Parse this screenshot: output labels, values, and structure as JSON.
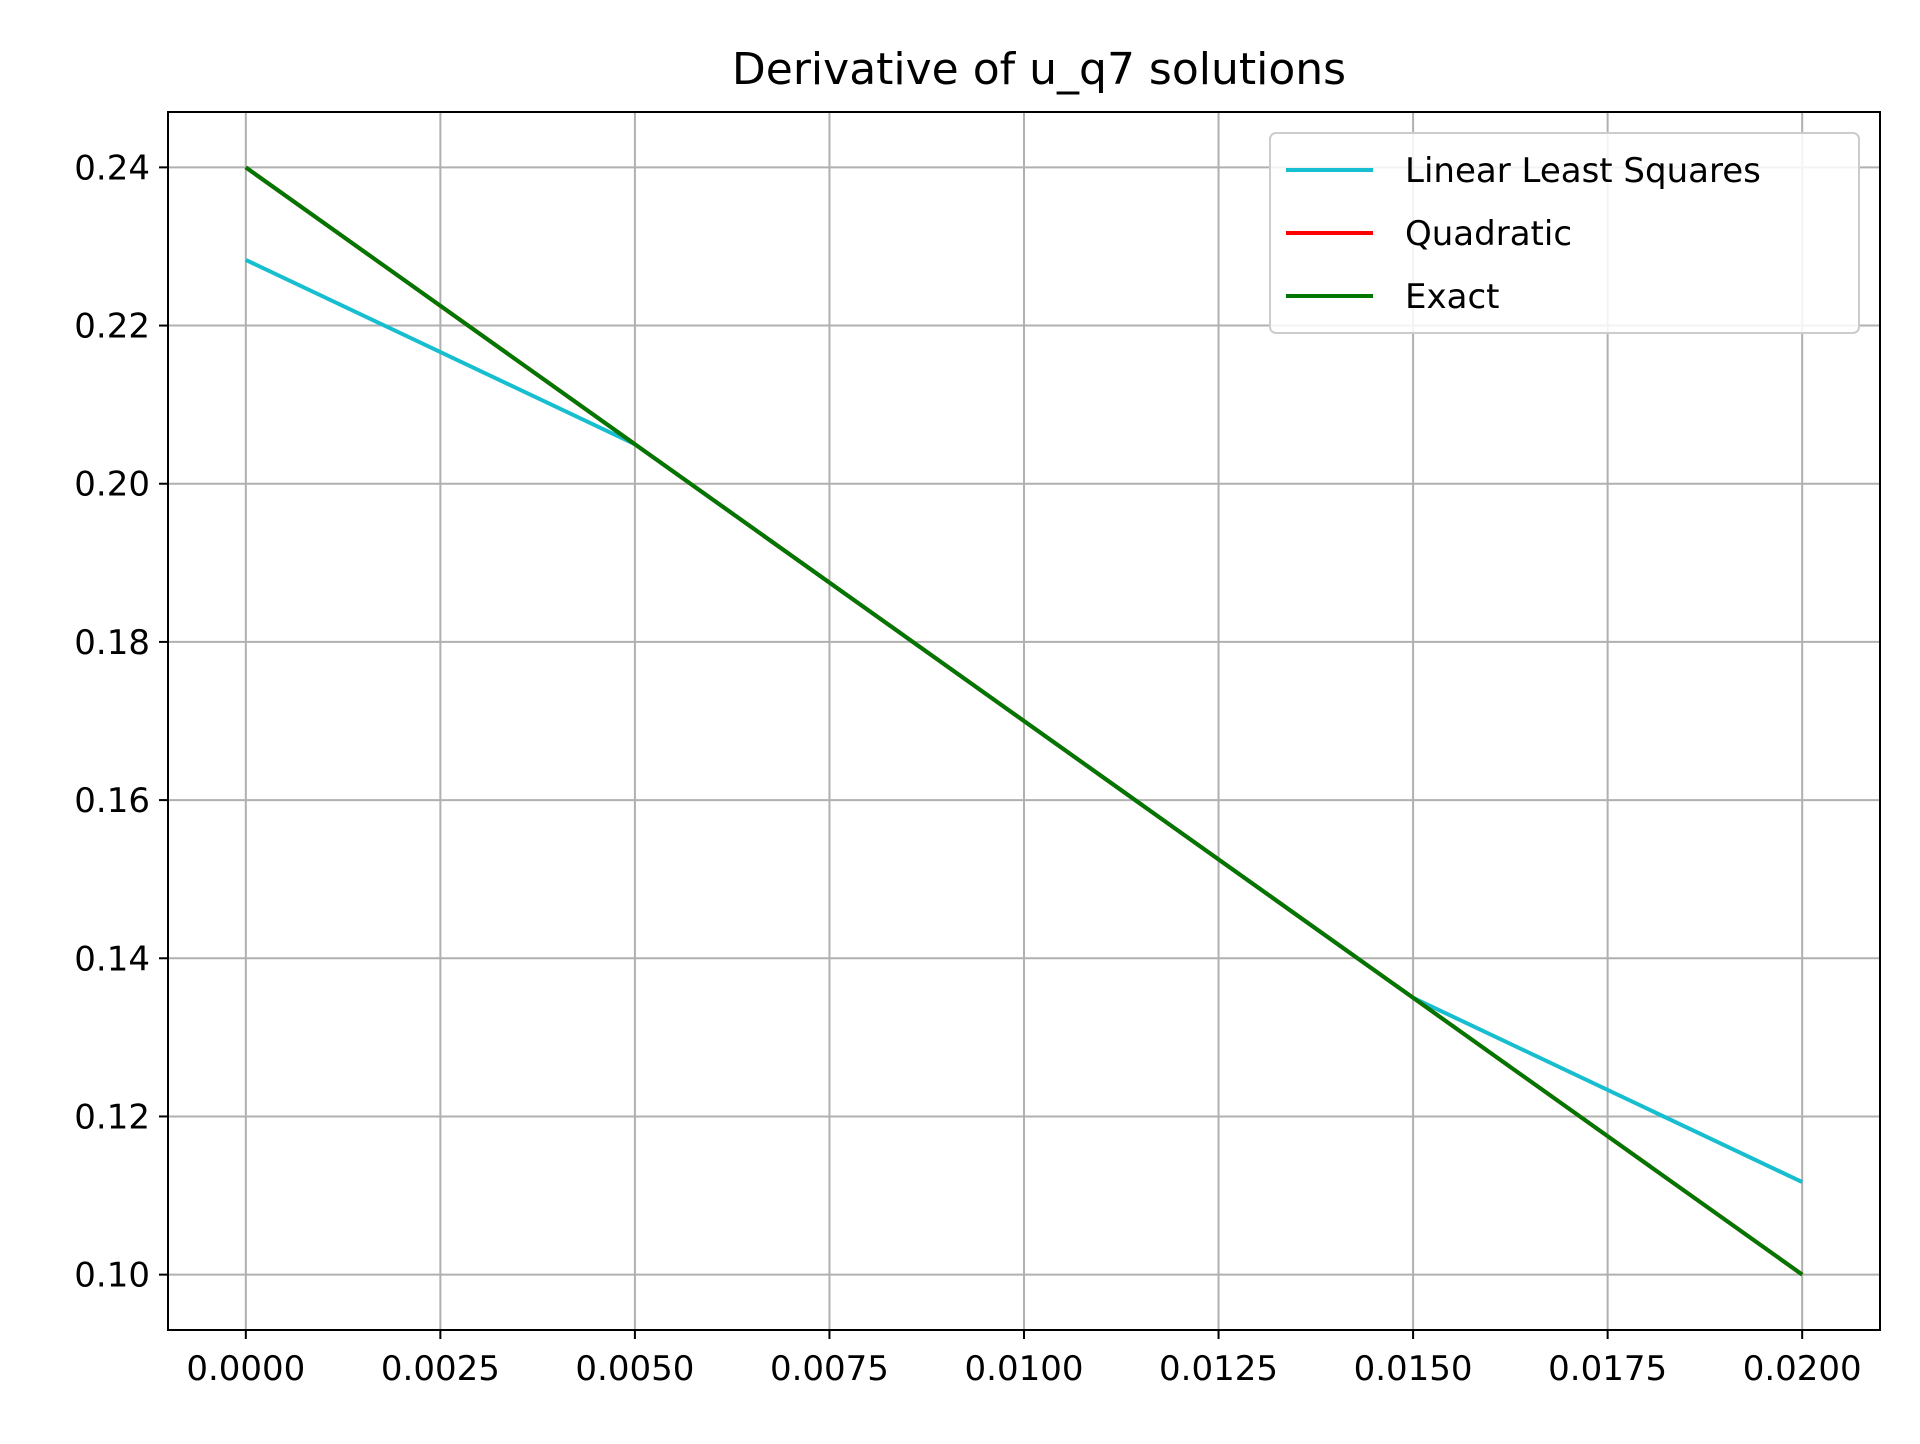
{
  "chart_data": {
    "type": "line",
    "title": "Derivative of u_q7 solutions",
    "xlabel": "",
    "ylabel": "",
    "xlim": [
      -0.001,
      0.021
    ],
    "ylim": [
      0.093,
      0.247
    ],
    "grid": true,
    "legend_position": "top-right",
    "x_ticks": [
      0.0,
      0.0025,
      0.005,
      0.0075,
      0.01,
      0.0125,
      0.015,
      0.0175,
      0.02
    ],
    "x_tick_labels": [
      "0.0000",
      "0.0025",
      "0.0050",
      "0.0075",
      "0.0100",
      "0.0125",
      "0.0150",
      "0.0175",
      "0.0200"
    ],
    "y_ticks": [
      0.1,
      0.12,
      0.14,
      0.16,
      0.18,
      0.2,
      0.22,
      0.24
    ],
    "y_tick_labels": [
      "0.10",
      "0.12",
      "0.14",
      "0.16",
      "0.18",
      "0.20",
      "0.22",
      "0.24"
    ],
    "series": [
      {
        "name": "Linear Least Squares",
        "color": "#17becf",
        "x": [
          0.0,
          0.005,
          0.005,
          0.015,
          0.015,
          0.02
        ],
        "y": [
          0.2283,
          0.205,
          0.205,
          0.135,
          0.135,
          0.1117
        ]
      },
      {
        "name": "Quadratic",
        "color": "#ff0000",
        "x": [
          0.0,
          0.005,
          0.01,
          0.015,
          0.02
        ],
        "y": [
          0.24,
          0.205,
          0.17,
          0.135,
          0.1
        ]
      },
      {
        "name": "Exact",
        "color": "#007700",
        "x": [
          0.0,
          0.005,
          0.01,
          0.015,
          0.02
        ],
        "y": [
          0.24,
          0.205,
          0.17,
          0.135,
          0.1
        ]
      }
    ]
  }
}
